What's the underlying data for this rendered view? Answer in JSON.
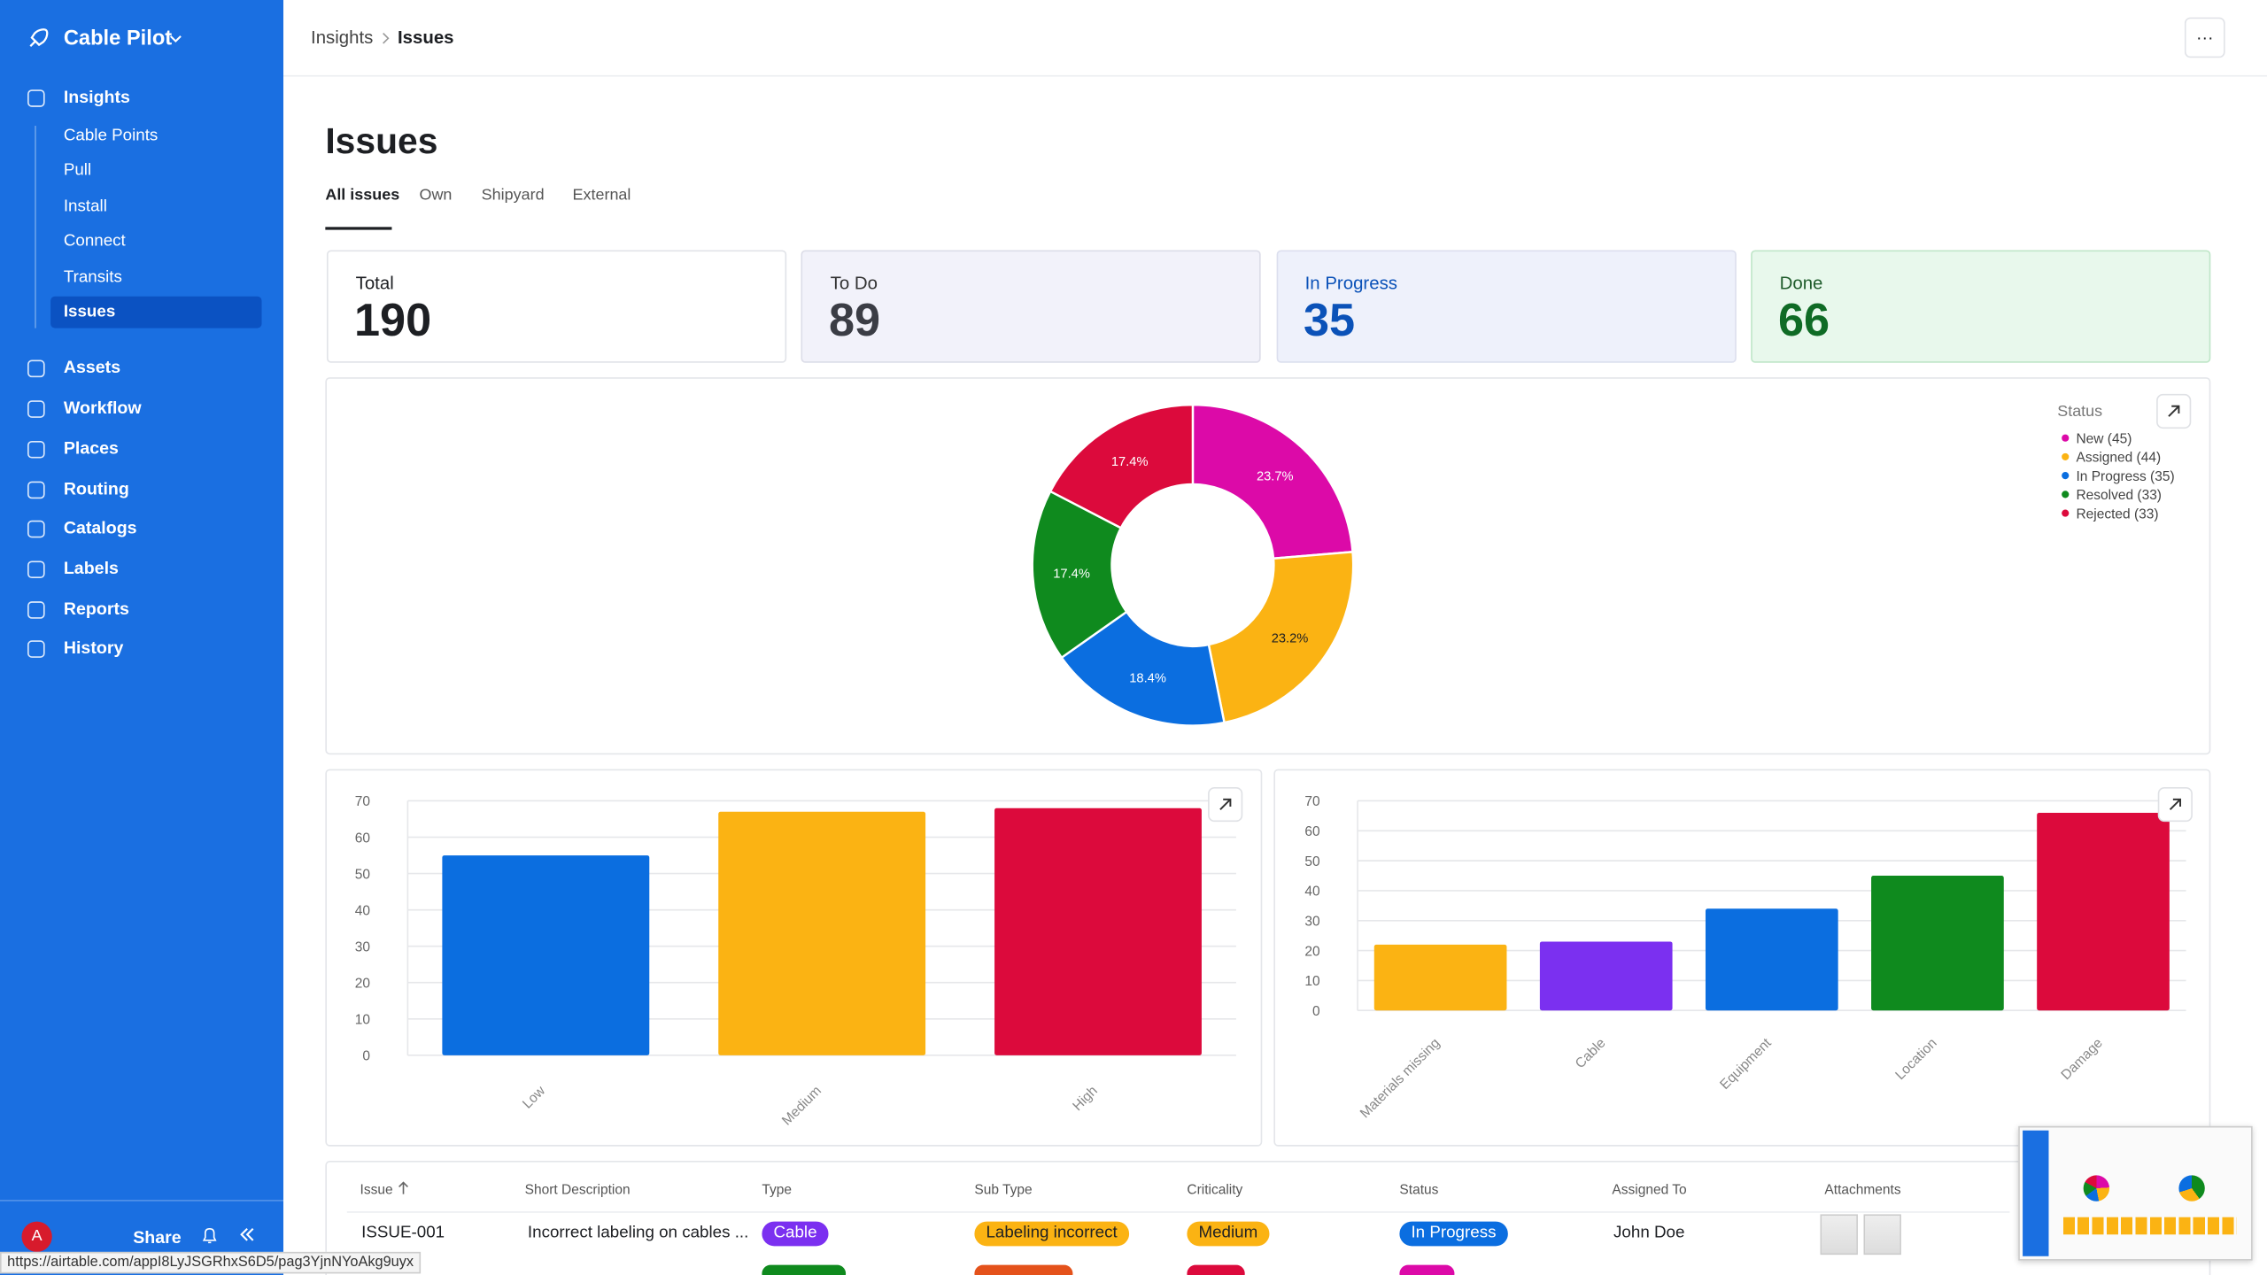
{
  "sidebar": {
    "app_name": "Cable Pilot",
    "nav": [
      {
        "label": "Insights",
        "children": [
          "Cable Points",
          "Pull",
          "Install",
          "Connect",
          "Transits",
          "Issues"
        ]
      },
      {
        "label": "Assets"
      },
      {
        "label": "Workflow"
      },
      {
        "label": "Places"
      },
      {
        "label": "Routing"
      },
      {
        "label": "Catalogs"
      },
      {
        "label": "Labels"
      },
      {
        "label": "Reports"
      },
      {
        "label": "History"
      }
    ],
    "avatar": "A",
    "share": "Share"
  },
  "header": {
    "breadcrumb": [
      "Insights",
      "Issues"
    ],
    "more": "···"
  },
  "page": {
    "title": "Issues",
    "tabs": [
      "All issues",
      "Own",
      "Shipyard",
      "External"
    ]
  },
  "stats": [
    {
      "label": "Total",
      "value": 190
    },
    {
      "label": "To Do",
      "value": 89
    },
    {
      "label": "In Progress",
      "value": 35
    },
    {
      "label": "Done",
      "value": 66
    }
  ],
  "chart_data": [
    {
      "type": "pie",
      "legend_title": "Status",
      "categories": [
        "New (45)",
        "Assigned (44)",
        "In Progress (35)",
        "Resolved (33)",
        "Rejected (33)"
      ],
      "values": [
        23.7,
        23.2,
        18.4,
        17.4,
        17.4
      ],
      "value_labels": [
        "23.7%",
        "23.2%",
        "18.4%",
        "17.4%",
        "17.4%"
      ],
      "colors": [
        "#dc0aa8",
        "#fbb313",
        "#0b6ee0",
        "#0f8a1e",
        "#dc0a3c"
      ],
      "legend": "top-right"
    },
    {
      "type": "bar",
      "categories": [
        "Low",
        "Medium",
        "High"
      ],
      "values": [
        55,
        67,
        68
      ],
      "colors": [
        "#0b6ee0",
        "#fbb313",
        "#dc0a3c"
      ],
      "ylim": [
        0,
        70
      ],
      "yticks": [
        0,
        10,
        20,
        30,
        40,
        50,
        60,
        70
      ],
      "grid": true
    },
    {
      "type": "bar",
      "categories": [
        "Materials missing",
        "Cable",
        "Equipment",
        "Location",
        "Damage"
      ],
      "values": [
        22,
        23,
        34,
        45,
        66
      ],
      "colors": [
        "#fbb313",
        "#7b30f0",
        "#0b6ee0",
        "#0f8a1e",
        "#dc0a3c"
      ],
      "ylim": [
        0,
        70
      ],
      "yticks": [
        0,
        10,
        20,
        30,
        40,
        50,
        60,
        70
      ],
      "grid": true
    }
  ],
  "table": {
    "columns": [
      "Issue",
      "Short Description",
      "Type",
      "Sub Type",
      "Criticality",
      "Status",
      "Assigned To",
      "Attachments"
    ],
    "rows": [
      [
        "ISSUE-001",
        "Incorrect labeling on cables ...",
        "Cable",
        "Labeling incorrect",
        "Medium",
        "In Progress",
        "John Doe"
      ]
    ]
  },
  "status_bar": {
    "url": "https://airtable.com/appI8LyJSGRhxS6D5/pag3YjnNYoAkg9uyx"
  }
}
